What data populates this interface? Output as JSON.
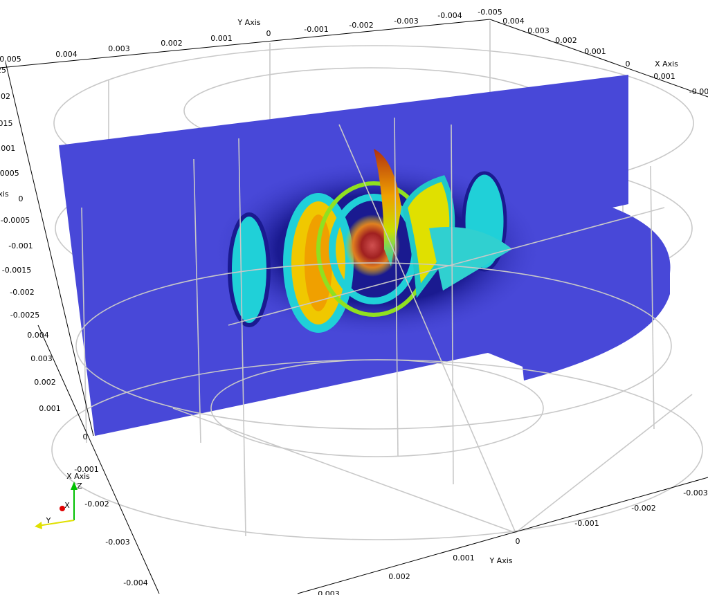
{
  "axes": {
    "top_y": {
      "title": "Y Axis",
      "ticks": [
        "0.004",
        "0.003",
        "0.002",
        "0.001",
        "0",
        "-0.001",
        "-0.002",
        "-0.003",
        "-0.004",
        "-0.005"
      ]
    },
    "top_x": {
      "title": "X Axis",
      "ticks": [
        "0.004",
        "0.003",
        "0.002",
        "0.001",
        "0",
        "-0.001",
        "-0.00"
      ]
    },
    "left_z": {
      "title": "xis",
      "ticks": [
        "0.005",
        "25",
        "02",
        "015",
        ".001",
        ".0005",
        "0",
        "-0.0005",
        "-0.001",
        "-0.0015",
        "-0.002",
        "-0.0025"
      ]
    },
    "left_x": {
      "ticks": [
        "0.004",
        "0.003",
        "0.002",
        "0.001",
        "0",
        "-0.001",
        "-0.002",
        "-0.003",
        "-0.004"
      ]
    },
    "bottom_y": {
      "title": "Y Axis",
      "ticks": [
        "0.003",
        "0.002",
        "0.001",
        "0",
        "-0.001",
        "-0.002",
        "-0.003"
      ]
    }
  },
  "orientation": {
    "title": "X Axis",
    "z": "Z",
    "x": "X",
    "y": "Y"
  }
}
